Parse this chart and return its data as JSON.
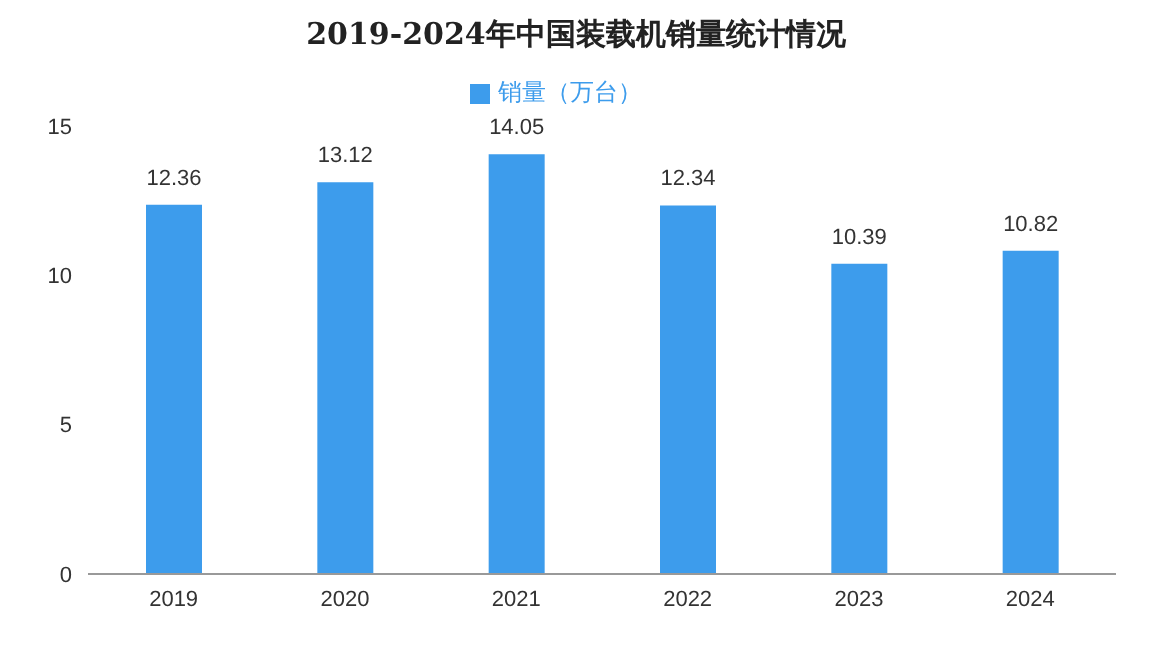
{
  "chart_data": {
    "type": "bar",
    "title": "2019-2024年中国装载机销量统计情况",
    "categories": [
      "2019",
      "2020",
      "2021",
      "2022",
      "2023",
      "2024"
    ],
    "series": [
      {
        "name": "销量（万台）",
        "color": "#3d9cec",
        "values": [
          12.36,
          13.12,
          14.05,
          12.34,
          10.39,
          10.82
        ]
      }
    ],
    "ylim": [
      0,
      15
    ],
    "yticks": [
      0,
      5,
      10,
      15
    ],
    "grid": false,
    "legend": "top",
    "data_labels": true
  }
}
